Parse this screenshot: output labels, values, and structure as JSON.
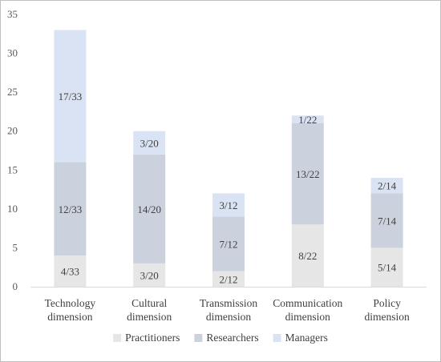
{
  "chart_data": {
    "type": "bar",
    "stacked": true,
    "categories": [
      [
        "Technology",
        "dimension"
      ],
      [
        "Cultural",
        "dimension"
      ],
      [
        "Transmission",
        "dimension"
      ],
      [
        "Communication",
        "dimension"
      ],
      [
        "Policy",
        "dimension"
      ]
    ],
    "series": [
      {
        "name": "Practitioners",
        "color": "#e6e6e6",
        "values": [
          4,
          3,
          2,
          8,
          5
        ],
        "labels": [
          "4/33",
          "3/20",
          "2/12",
          "8/22",
          "5/14"
        ]
      },
      {
        "name": "Researchers",
        "color": "#cbd2dd",
        "values": [
          12,
          14,
          7,
          13,
          7
        ],
        "labels": [
          "12/33",
          "14/20",
          "7/12",
          "13/22",
          "7/14"
        ]
      },
      {
        "name": "Managers",
        "color": "#dae3f3",
        "values": [
          17,
          3,
          3,
          1,
          2
        ],
        "labels": [
          "17/33",
          "3/20",
          "3/12",
          "1/22",
          "2/14"
        ]
      }
    ],
    "ylim": [
      0,
      35
    ],
    "yticks": [
      0,
      5,
      10,
      15,
      20,
      25,
      30,
      35
    ],
    "grid": false,
    "legend_position": "bottom",
    "title": "",
    "xlabel": "",
    "ylabel": ""
  }
}
